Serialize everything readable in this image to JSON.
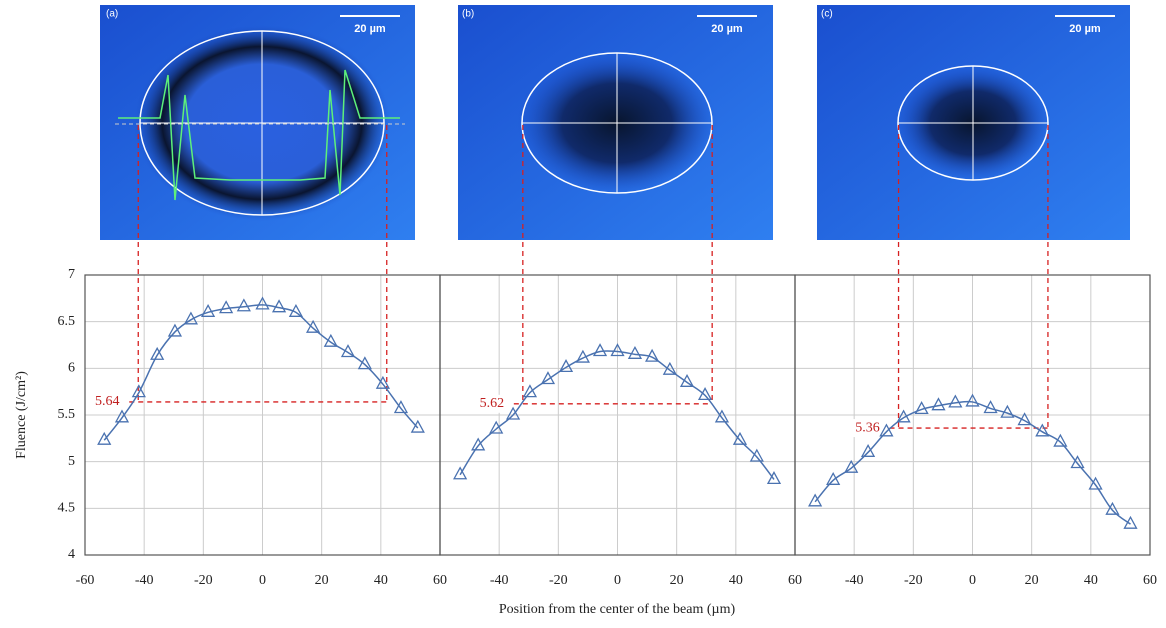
{
  "images": [
    {
      "label": "(a)",
      "scale": "20 µm"
    },
    {
      "label": "(b)",
      "scale": "20 µm"
    },
    {
      "label": "(c)",
      "scale": "20 µm"
    }
  ],
  "chart_data": [
    {
      "type": "line",
      "color": "#4a72b0",
      "ylabel": "Fluence (J/cm²)",
      "ylim": [
        4,
        7
      ],
      "yticks": [
        4,
        4.5,
        5,
        5.5,
        6,
        6.5,
        7
      ],
      "xlim": [
        -60,
        60
      ],
      "xticks": [
        -60,
        -40,
        -20,
        0,
        20,
        40,
        60
      ],
      "x": [
        -53.5,
        -47.5,
        -41.8,
        -35.6,
        -29.6,
        -24.2,
        -18.4,
        -12.3,
        -6.3,
        0,
        5.6,
        11.3,
        17.1,
        23.1,
        28.9,
        34.6,
        40.7,
        46.8,
        52.5
      ],
      "values": [
        5.23,
        5.47,
        5.74,
        6.14,
        6.39,
        6.52,
        6.6,
        6.64,
        6.66,
        6.68,
        6.65,
        6.6,
        6.43,
        6.28,
        6.17,
        6.04,
        5.83,
        5.57,
        5.36
      ],
      "threshold": 5.64,
      "threshold_x": [
        -42,
        42
      ]
    },
    {
      "type": "line",
      "color": "#4a72b0",
      "xlabel": "Position from the center of the beam (µm)",
      "ylim": [
        4,
        7
      ],
      "xlim": [
        -60,
        60
      ],
      "xticks": [
        -40,
        -20,
        0,
        20,
        40,
        60
      ],
      "x": [
        -53.2,
        -47.1,
        -41,
        -35.3,
        -29.6,
        -23.5,
        -17.4,
        -11.7,
        -5.9,
        0,
        5.9,
        11.7,
        17.7,
        23.5,
        29.6,
        35.3,
        41.4,
        47.1,
        52.9
      ],
      "values": [
        4.86,
        5.17,
        5.35,
        5.5,
        5.74,
        5.88,
        6.01,
        6.11,
        6.18,
        6.18,
        6.15,
        6.12,
        5.98,
        5.85,
        5.71,
        5.47,
        5.23,
        5.05,
        4.81
      ],
      "threshold": 5.62,
      "threshold_x": [
        -32,
        32
      ]
    },
    {
      "type": "line",
      "color": "#4a72b0",
      "ylim": [
        4,
        7
      ],
      "xlim": [
        -60,
        60
      ],
      "xticks": [
        -40,
        -20,
        0,
        20,
        40,
        60
      ],
      "x": [
        -53.2,
        -47.1,
        -41,
        -35.3,
        -29.1,
        -23.3,
        -17.2,
        -11.5,
        -5.8,
        0,
        6.1,
        11.8,
        17.6,
        23.6,
        29.7,
        35.5,
        41.6,
        47.3,
        53.4
      ],
      "values": [
        4.57,
        4.8,
        4.93,
        5.1,
        5.32,
        5.47,
        5.56,
        5.6,
        5.63,
        5.64,
        5.57,
        5.52,
        5.44,
        5.32,
        5.21,
        4.98,
        4.75,
        4.48,
        4.33
      ],
      "threshold": 5.36,
      "threshold_x": [
        -25,
        25.5
      ]
    }
  ]
}
